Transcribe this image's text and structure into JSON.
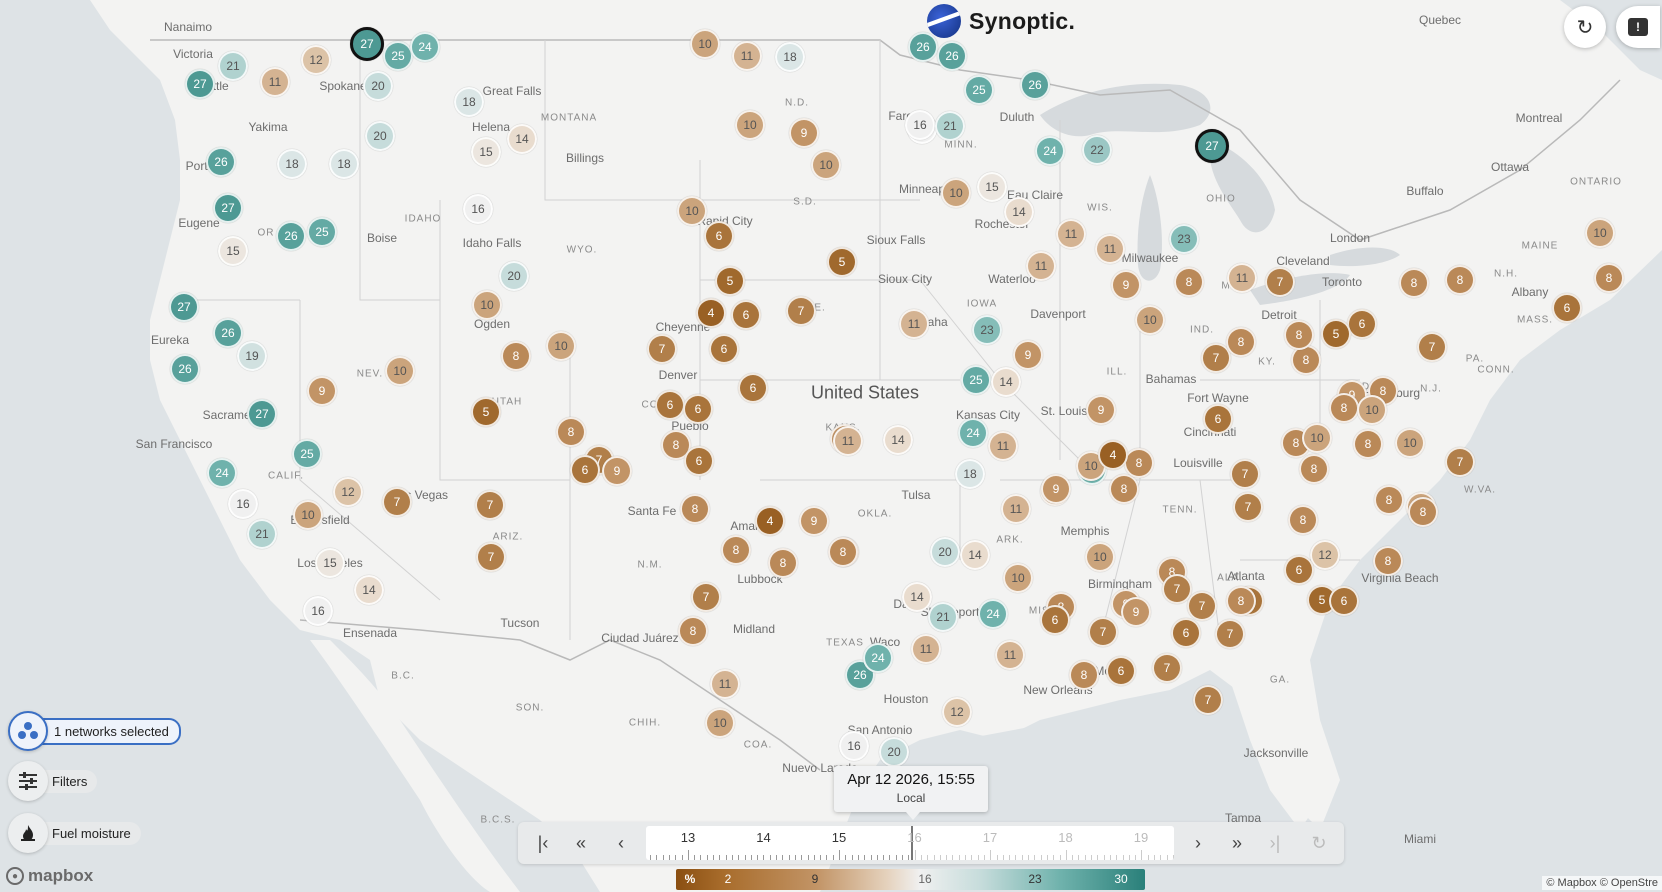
{
  "app": {
    "logo_text": "Synoptic.",
    "refresh_icon": "refresh-icon",
    "feedback_icon": "feedback-icon"
  },
  "controls": {
    "networks_label": "1 networks selected",
    "filters_label": "Filters",
    "variable_label": "Fuel moisture"
  },
  "time": {
    "current": "Apr 12 2026, 15:55",
    "zone": "Local",
    "ticks": [
      {
        "label": "13",
        "future": false
      },
      {
        "label": "14",
        "future": false
      },
      {
        "label": "15",
        "future": false
      },
      {
        "label": "16",
        "future": true
      },
      {
        "label": "17",
        "future": true
      },
      {
        "label": "18",
        "future": true
      },
      {
        "label": "19",
        "future": true
      }
    ],
    "first_icon": "skip-first-icon",
    "back_fast_icon": "double-chevron-left-icon",
    "back_icon": "chevron-left-icon",
    "fwd_icon": "chevron-right-icon",
    "fwd_fast_icon": "double-chevron-right-icon",
    "last_icon": "skip-last-icon",
    "reload_icon": "refresh-icon"
  },
  "legend": {
    "unit": "%",
    "stops": [
      "2",
      "9",
      "16",
      "23",
      "30"
    ],
    "colors": [
      "#8a4f12",
      "#a86c2b",
      "#c29466",
      "#e5d2bd",
      "#f0f0f0",
      "#c6dcdb",
      "#6fb2ac",
      "#2a807a"
    ]
  },
  "attribution": "© Mapbox © OpenStre",
  "mapbox_logo": "mapbox",
  "places": [
    "Nanaimo",
    "Victoria",
    "Seattle",
    "Spokane",
    "Great Falls",
    "MONTANA",
    "Helena",
    "Billings",
    "Yakima",
    "Portland",
    "Eugene",
    "OR",
    "IDAHO",
    "Boise",
    "Idaho Falls",
    "WYO.",
    "Ogden",
    "Cheyenne",
    "Denver",
    "CO",
    "Pueblo",
    "UTAH",
    "NEV.",
    "Eureka",
    "Sacramento",
    "San Francisco",
    "CALIF.",
    "Las Vegas",
    "Bakersfield",
    "Los Angeles",
    "Ensenada",
    "ARIZ.",
    "Tucson",
    "N.M.",
    "Santa Fe",
    "Amarillo",
    "Lubbock",
    "Ciudad Juárez",
    "Midland",
    "SON.",
    "CHIH.",
    "COA.",
    "B.C.S.",
    "B.C.",
    "Nuevo Laredo",
    "N.D.",
    "S.D.",
    "Fargo",
    "Rapid City",
    "Sioux Falls",
    "Sioux City",
    "NE.",
    "Omaha",
    "KANS.",
    "United States",
    "Kansas City",
    "Tulsa",
    "OKLA.",
    "Dallas",
    "TEXAS",
    "Waco",
    "Houston",
    "San Antonio",
    "Shreveport",
    "ARK.",
    "LA.",
    "MISS.",
    "New Orleans",
    "Mobile",
    "Duluth",
    "MINN.",
    "Minneapolis",
    "Rochester",
    "Eau Claire",
    "WIS.",
    "Milwaukee",
    "IOWA",
    "Waterloo",
    "Davenport",
    "ILL.",
    "St. Louis",
    "Memphis",
    "TENN.",
    "Birmingham",
    "ALA.",
    "Atlanta",
    "GA.",
    "Jacksonville",
    "Tampa",
    "Miami",
    "Bahamas",
    "IND.",
    "Fort Wayne",
    "Cincinnati",
    "Louisville",
    "KY.",
    "OHIO",
    "MICH.",
    "Detroit",
    "Cleveland",
    "London",
    "Toronto",
    "Buffalo",
    "Ottawa",
    "Montreal",
    "Quebec",
    "ONTARIO",
    "MAINE",
    "N.H.",
    "Albany",
    "MASS.",
    "CONN.",
    "N.J.",
    "PA.",
    "Harrisburg",
    "DEL.",
    "W.VA.",
    "Virginia Beach",
    "S.C."
  ],
  "markers": [
    {
      "v": 27,
      "sel": true
    },
    {
      "v": 25
    },
    {
      "v": 24
    },
    {
      "v": 21
    },
    {
      "v": 12
    },
    {
      "v": 27
    },
    {
      "v": 11
    },
    {
      "v": 20
    },
    {
      "v": 18
    },
    {
      "v": 20
    },
    {
      "v": 15
    },
    {
      "v": 14
    },
    {
      "v": 26
    },
    {
      "v": 18
    },
    {
      "v": 18
    },
    {
      "v": 27
    },
    {
      "v": 16
    },
    {
      "v": 26
    },
    {
      "v": 25
    },
    {
      "v": 15
    },
    {
      "v": 20
    },
    {
      "v": 10
    },
    {
      "v": 27
    },
    {
      "v": 26
    },
    {
      "v": 19
    },
    {
      "v": 26
    },
    {
      "v": 10
    },
    {
      "v": 9
    },
    {
      "v": 8
    },
    {
      "v": 10
    },
    {
      "v": 27
    },
    {
      "v": 5
    },
    {
      "v": 25
    },
    {
      "v": 24
    },
    {
      "v": 16
    },
    {
      "v": 12
    },
    {
      "v": 7
    },
    {
      "v": 10
    },
    {
      "v": 21
    },
    {
      "v": 15
    },
    {
      "v": 14
    },
    {
      "v": 16
    },
    {
      "v": 10
    },
    {
      "v": 11
    },
    {
      "v": 18
    },
    {
      "v": 10
    },
    {
      "v": 9
    },
    {
      "v": 10
    },
    {
      "v": 10
    },
    {
      "v": 6
    },
    {
      "v": 5
    },
    {
      "v": 4
    },
    {
      "v": 6
    },
    {
      "v": 7
    },
    {
      "v": 6
    },
    {
      "v": 5
    },
    {
      "v": 7
    },
    {
      "v": 6
    },
    {
      "v": 6
    },
    {
      "v": 6
    },
    {
      "v": 8
    },
    {
      "v": 7
    },
    {
      "v": 8
    },
    {
      "v": 6
    },
    {
      "v": 6
    },
    {
      "v": 9
    },
    {
      "v": 7
    },
    {
      "v": 7
    },
    {
      "v": 8
    },
    {
      "v": 4
    },
    {
      "v": 9
    },
    {
      "v": 8
    },
    {
      "v": 8
    },
    {
      "v": 8
    },
    {
      "v": 7
    },
    {
      "v": 8
    },
    {
      "v": 11
    },
    {
      "v": 10
    },
    {
      "v": 8
    },
    {
      "v": 9
    },
    {
      "v": 16
    },
    {
      "v": 26
    },
    {
      "v": 26
    },
    {
      "v": 25
    },
    {
      "v": 26
    },
    {
      "v": 16
    },
    {
      "v": 21
    },
    {
      "v": 24
    },
    {
      "v": 22
    },
    {
      "v": 27,
      "sel": true
    },
    {
      "v": 10
    },
    {
      "v": 15
    },
    {
      "v": 14
    },
    {
      "v": 11
    },
    {
      "v": 11
    },
    {
      "v": 11
    },
    {
      "v": 23
    },
    {
      "v": 11
    },
    {
      "v": 23
    },
    {
      "v": 9
    },
    {
      "v": 25
    },
    {
      "v": 14
    },
    {
      "v": 11
    },
    {
      "v": 14
    },
    {
      "v": 24
    },
    {
      "v": 11
    },
    {
      "v": 18
    },
    {
      "v": 11
    },
    {
      "v": 20
    },
    {
      "v": 14
    },
    {
      "v": 14
    },
    {
      "v": 21
    },
    {
      "v": 24
    },
    {
      "v": 11
    },
    {
      "v": 26
    },
    {
      "v": 24
    },
    {
      "v": 24
    },
    {
      "v": 10
    },
    {
      "v": 10
    },
    {
      "v": 16
    },
    {
      "v": 20
    },
    {
      "v": 12
    },
    {
      "v": 11
    },
    {
      "v": 9
    },
    {
      "v": 8
    },
    {
      "v": 10
    },
    {
      "v": 9
    },
    {
      "v": 10
    },
    {
      "v": 11
    },
    {
      "v": 8
    },
    {
      "v": 7
    },
    {
      "v": 8
    },
    {
      "v": 8
    },
    {
      "v": 7
    },
    {
      "v": 8
    },
    {
      "v": 8
    },
    {
      "v": 8
    },
    {
      "v": 6
    },
    {
      "v": 5
    },
    {
      "v": 8
    },
    {
      "v": 7
    },
    {
      "v": 9
    },
    {
      "v": 10
    },
    {
      "v": 6
    },
    {
      "v": 8
    },
    {
      "v": 10
    },
    {
      "v": 8
    },
    {
      "v": 8
    },
    {
      "v": 10
    },
    {
      "v": 8
    },
    {
      "v": 8
    },
    {
      "v": 8
    },
    {
      "v": 7
    },
    {
      "v": 8
    },
    {
      "v": 10
    },
    {
      "v": 12
    },
    {
      "v": 8
    },
    {
      "v": 8
    },
    {
      "v": 7
    },
    {
      "v": 10
    },
    {
      "v": 9
    },
    {
      "v": 8
    },
    {
      "v": 7
    },
    {
      "v": 6
    },
    {
      "v": 6
    },
    {
      "v": 8
    },
    {
      "v": 7
    },
    {
      "v": 9
    },
    {
      "v": 4
    },
    {
      "v": 9
    },
    {
      "v": 7
    },
    {
      "v": 6
    },
    {
      "v": 8
    },
    {
      "v": 5
    },
    {
      "v": 8
    },
    {
      "v": 6
    },
    {
      "v": 7
    },
    {
      "v": 7
    },
    {
      "v": 7
    },
    {
      "v": 6
    },
    {
      "v": 6
    },
    {
      "v": 8
    },
    {
      "v": 7
    },
    {
      "v": 10
    },
    {
      "v": 6
    },
    {
      "v": 8
    }
  ]
}
